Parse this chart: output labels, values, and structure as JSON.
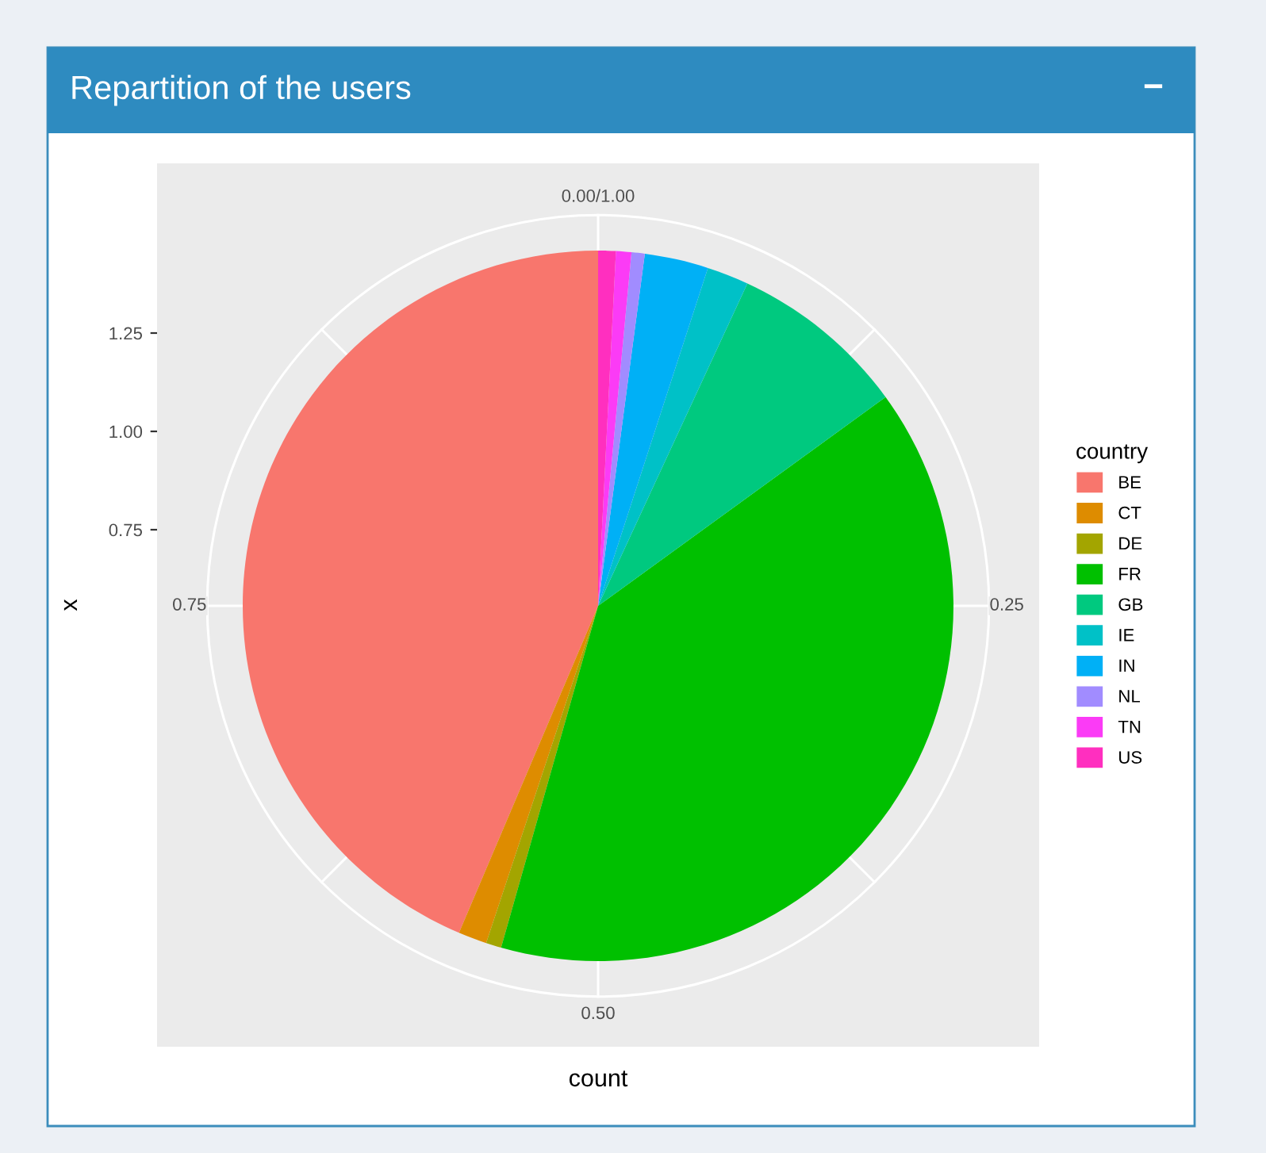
{
  "chart_data": {
    "type": "pie",
    "title": "Repartition of the users",
    "categories": [
      "BE",
      "CT",
      "DE",
      "FR",
      "GB",
      "IE",
      "IN",
      "NL",
      "TN",
      "US"
    ],
    "values": [
      43.6,
      1.3,
      0.7,
      39.4,
      8.1,
      1.9,
      2.9,
      0.6,
      0.7,
      0.8
    ],
    "colors": [
      "#f8766d",
      "#de8c00",
      "#a3a500",
      "#00c000",
      "#00c97f",
      "#00c1c7",
      "#00b0f6",
      "#a18cff",
      "#fb3bf6",
      "#ff2fbf"
    ],
    "xlabel": "count",
    "ylabel": "x",
    "legend_title": "country",
    "legend": "right",
    "grid": true,
    "annotations": [
      "−",
      "0.00/1.00",
      "0.25",
      "0.50",
      "0.75",
      "1.25",
      "1.00",
      "0.75"
    ]
  }
}
